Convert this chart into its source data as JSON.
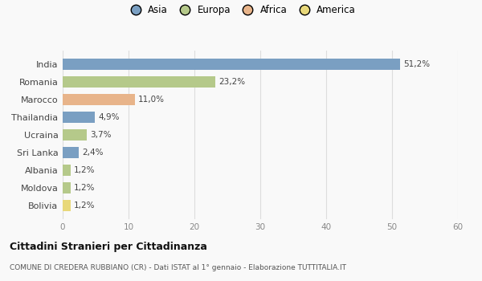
{
  "categories": [
    "India",
    "Romania",
    "Marocco",
    "Thailandia",
    "Ucraina",
    "Sri Lanka",
    "Albania",
    "Moldova",
    "Bolivia"
  ],
  "values": [
    51.2,
    23.2,
    11.0,
    4.9,
    3.7,
    2.4,
    1.2,
    1.2,
    1.2
  ],
  "labels": [
    "51,2%",
    "23,2%",
    "11,0%",
    "4,9%",
    "3,7%",
    "2,4%",
    "1,2%",
    "1,2%",
    "1,2%"
  ],
  "colors": [
    "#7a9fc2",
    "#b5c98a",
    "#e8b48a",
    "#7a9fc2",
    "#b5c98a",
    "#7a9fc2",
    "#b5c98a",
    "#b5c98a",
    "#e8d87a"
  ],
  "legend_labels": [
    "Asia",
    "Europa",
    "Africa",
    "America"
  ],
  "legend_colors": [
    "#7a9fc2",
    "#b5c98a",
    "#e8b48a",
    "#e8d87a"
  ],
  "xlim": [
    0,
    60
  ],
  "xticks": [
    0,
    10,
    20,
    30,
    40,
    50,
    60
  ],
  "title": "Cittadini Stranieri per Cittadinanza",
  "subtitle": "COMUNE DI CREDERA RUBBIANO (CR) - Dati ISTAT al 1° gennaio - Elaborazione TUTTITALIA.IT",
  "bg_color": "#f9f9f9",
  "grid_color": "#dddddd",
  "bar_height": 0.65
}
